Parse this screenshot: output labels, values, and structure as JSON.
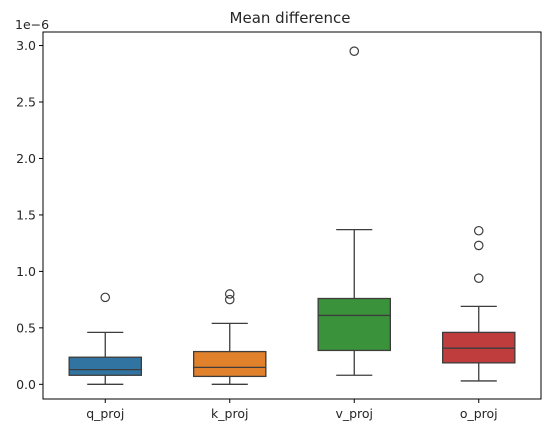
{
  "chart_data": {
    "type": "box",
    "title": "Mean difference",
    "xlabel": "",
    "ylabel": "",
    "y_scale_label": "1e−6",
    "ylim": [
      -0.13,
      3.12
    ],
    "ytick_values": [
      0.0,
      0.5,
      1.0,
      1.5,
      2.0,
      2.5,
      3.0
    ],
    "ytick_labels": [
      "0.0",
      "0.5",
      "1.0",
      "1.5",
      "2.0",
      "2.5",
      "3.0"
    ],
    "grid": false,
    "categories": [
      "q_proj",
      "k_proj",
      "v_proj",
      "o_proj"
    ],
    "colors": [
      "#3274a1",
      "#e1812c",
      "#3a923a",
      "#c03d3e"
    ],
    "boxes": [
      {
        "name": "q_proj",
        "whisker_low": 0.0,
        "q1": 0.08,
        "median": 0.13,
        "q3": 0.24,
        "whisker_high": 0.46,
        "outliers": [
          0.77
        ]
      },
      {
        "name": "k_proj",
        "whisker_low": 0.0,
        "q1": 0.07,
        "median": 0.15,
        "q3": 0.29,
        "whisker_high": 0.54,
        "outliers": [
          0.75,
          0.8
        ]
      },
      {
        "name": "v_proj",
        "whisker_low": 0.08,
        "q1": 0.3,
        "median": 0.61,
        "q3": 0.76,
        "whisker_high": 1.37,
        "outliers": [
          2.95
        ]
      },
      {
        "name": "o_proj",
        "whisker_low": 0.03,
        "q1": 0.19,
        "median": 0.32,
        "q3": 0.46,
        "whisker_high": 0.69,
        "outliers": [
          0.94,
          1.23,
          1.36
        ]
      }
    ]
  }
}
